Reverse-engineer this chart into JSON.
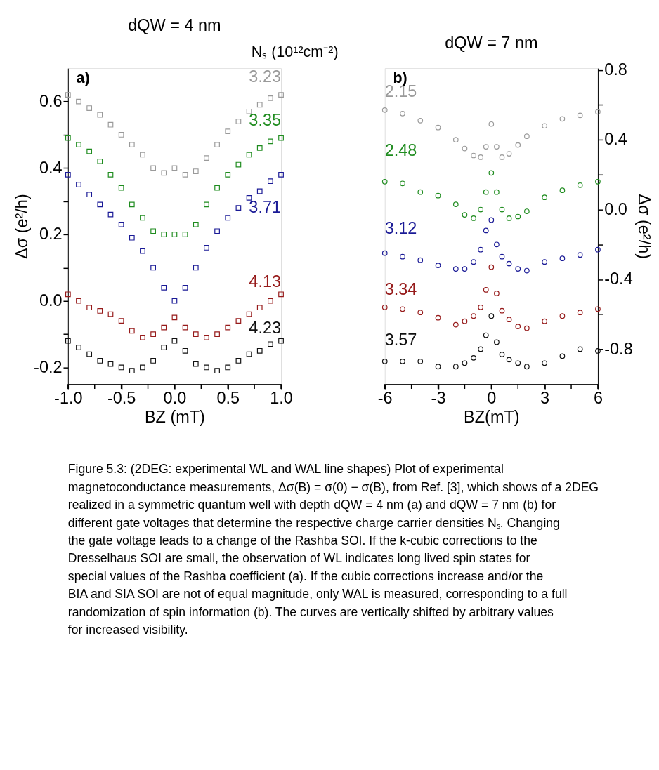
{
  "chart_data": [
    {
      "type": "scatter",
      "title": "dQW = 4 nm",
      "legend_title": "Nₛ (10¹²cm⁻²)",
      "xlabel": "BZ (mT)",
      "ylabel": "Δσ (e²/h)",
      "marker": "square",
      "xlim": [
        -1.0,
        1.0
      ],
      "ylim": [
        -0.25,
        0.7
      ],
      "xticks": [
        {
          "value": -1.0,
          "label": "-1.0"
        },
        {
          "value": -0.75,
          "label": null
        },
        -0.5,
        {
          "value": -0.25,
          "label": null
        },
        {
          "value": 0,
          "label": "0.0"
        },
        {
          "value": 0.25,
          "label": null
        },
        0.5,
        {
          "value": 0.75,
          "label": null
        },
        {
          "value": 1.0,
          "label": "1.0"
        }
      ],
      "yticks": [
        -0.2,
        {
          "value": -0.1,
          "label": null
        },
        {
          "value": 0,
          "label": "0.0"
        },
        {
          "value": 0.1,
          "label": null
        },
        0.2,
        {
          "value": 0.3,
          "label": null
        },
        0.4,
        {
          "value": 0.5,
          "label": null
        },
        0.6
      ],
      "x": [
        -1.0,
        -0.9,
        -0.8,
        -0.7,
        -0.6,
        -0.5,
        -0.4,
        -0.3,
        -0.2,
        -0.1,
        0.0,
        0.1,
        0.2,
        0.3,
        0.4,
        0.5,
        0.6,
        0.7,
        0.8,
        0.9,
        1.0
      ],
      "series": [
        {
          "name": "3.23",
          "color": "#9a9a9a",
          "values": [
            0.62,
            0.6,
            0.58,
            0.56,
            0.53,
            0.5,
            0.47,
            0.44,
            0.4,
            0.385,
            0.4,
            0.38,
            0.39,
            0.43,
            0.47,
            0.51,
            0.54,
            0.57,
            0.59,
            0.61,
            0.62
          ]
        },
        {
          "name": "3.35",
          "color": "#1f8c1f",
          "values": [
            0.49,
            0.47,
            0.45,
            0.42,
            0.38,
            0.34,
            0.29,
            0.25,
            0.21,
            0.2,
            0.2,
            0.2,
            0.23,
            0.29,
            0.34,
            0.38,
            0.41,
            0.44,
            0.46,
            0.48,
            0.49
          ]
        },
        {
          "name": "3.71",
          "color": "#1a1a96",
          "values": [
            0.38,
            0.35,
            0.32,
            0.29,
            0.26,
            0.23,
            0.19,
            0.15,
            0.1,
            0.04,
            0.0,
            0.04,
            0.1,
            0.16,
            0.21,
            0.25,
            0.28,
            0.31,
            0.33,
            0.36,
            0.38
          ]
        },
        {
          "name": "4.13",
          "color": "#961a1a",
          "values": [
            0.02,
            0.0,
            -0.02,
            -0.03,
            -0.04,
            -0.06,
            -0.09,
            -0.11,
            -0.1,
            -0.08,
            -0.05,
            -0.08,
            -0.1,
            -0.11,
            -0.1,
            -0.08,
            -0.06,
            -0.04,
            -0.02,
            0.0,
            0.02
          ]
        },
        {
          "name": "4.23",
          "color": "#111111",
          "values": [
            -0.12,
            -0.14,
            -0.16,
            -0.18,
            -0.19,
            -0.2,
            -0.21,
            -0.2,
            -0.18,
            -0.14,
            -0.12,
            -0.15,
            -0.19,
            -0.2,
            -0.21,
            -0.2,
            -0.18,
            -0.16,
            -0.15,
            -0.13,
            -0.12
          ]
        }
      ],
      "annotations": [
        "a)",
        "Figure 5.3: (2DEG: experimental WL and WAL line shapes) Plot of experimental magnetoconductance measurements, Δσ(B) = σ(0) − σ(B), from Ref. [3], which shows of a 2DEG realized in a symmetric quantum well with depth dQW = 4 nm (a) and dQW = 7 nm (b) for different gate voltages that determine the respective charge carrier densities Nₛ. Changing the gate voltage leads to a change of the Rashba SOI. If the k-cubic corrections to the Dresselhaus SOI are small, the observation of WL indicates long lived spin states for special values of the Rashba coefficient (a). If the cubic corrections increase and/or the BIA and SIA SOI are not of equal magnitude, only WAL is measured, corresponding to a full randomization of spin information (b). The curves are vertically shifted by arbitrary values for increased visibility."
      ]
    },
    {
      "type": "scatter",
      "title": "dQW = 7 nm",
      "xlabel": "BZ(mT)",
      "ylabel": "Δσ (e²/h)",
      "marker": "circle",
      "xlim": [
        -6,
        6
      ],
      "ylim": [
        -1.0,
        0.81
      ],
      "xticks": [
        -6,
        {
          "value": -4.5,
          "label": null
        },
        -3,
        {
          "value": -1.5,
          "label": null
        },
        0,
        {
          "value": 1.5,
          "label": null
        },
        3,
        {
          "value": 4.5,
          "label": null
        },
        6
      ],
      "yticks": [
        -0.8,
        {
          "value": -0.6,
          "label": null
        },
        -0.4,
        {
          "value": -0.2,
          "label": null
        },
        {
          "value": 0,
          "label": "0.0"
        },
        {
          "value": 0.2,
          "label": null
        },
        0.4,
        {
          "value": 0.6,
          "label": null
        },
        0.8
      ],
      "x": [
        -6,
        -5,
        -4,
        -3,
        -2,
        -1.5,
        -1,
        -0.6,
        -0.3,
        0,
        0.3,
        0.6,
        1,
        1.5,
        2,
        3,
        4,
        5,
        6
      ],
      "series": [
        {
          "name": "2.15",
          "color": "#9a9a9a",
          "values": [
            0.57,
            0.55,
            0.51,
            0.47,
            0.4,
            0.35,
            0.31,
            0.3,
            0.36,
            0.49,
            0.36,
            0.3,
            0.32,
            0.37,
            0.42,
            0.48,
            0.52,
            0.54,
            0.56
          ]
        },
        {
          "name": "2.48",
          "color": "#1f8c1f",
          "values": [
            0.16,
            0.15,
            0.1,
            0.08,
            0.03,
            -0.03,
            -0.05,
            0.0,
            0.1,
            0.21,
            0.1,
            0.0,
            -0.05,
            -0.04,
            -0.01,
            0.07,
            0.11,
            0.14,
            0.16
          ]
        },
        {
          "name": "3.12",
          "color": "#1a1a96",
          "values": [
            -0.25,
            -0.27,
            -0.29,
            -0.32,
            -0.34,
            -0.34,
            -0.3,
            -0.23,
            -0.12,
            -0.06,
            -0.2,
            -0.27,
            -0.31,
            -0.34,
            -0.35,
            -0.3,
            -0.28,
            -0.26,
            -0.23
          ]
        },
        {
          "name": "3.34",
          "color": "#961a1a",
          "values": [
            -0.56,
            -0.57,
            -0.59,
            -0.62,
            -0.66,
            -0.64,
            -0.61,
            -0.56,
            -0.46,
            -0.33,
            -0.48,
            -0.58,
            -0.63,
            -0.67,
            -0.68,
            -0.64,
            -0.61,
            -0.59,
            -0.57
          ]
        },
        {
          "name": "3.57",
          "color": "#111111",
          "values": [
            -0.87,
            -0.87,
            -0.87,
            -0.9,
            -0.9,
            -0.88,
            -0.85,
            -0.8,
            -0.72,
            -0.61,
            -0.76,
            -0.83,
            -0.86,
            -0.88,
            -0.9,
            -0.88,
            -0.84,
            -0.8,
            -0.81
          ]
        }
      ],
      "annotations": [
        "b)"
      ]
    }
  ]
}
